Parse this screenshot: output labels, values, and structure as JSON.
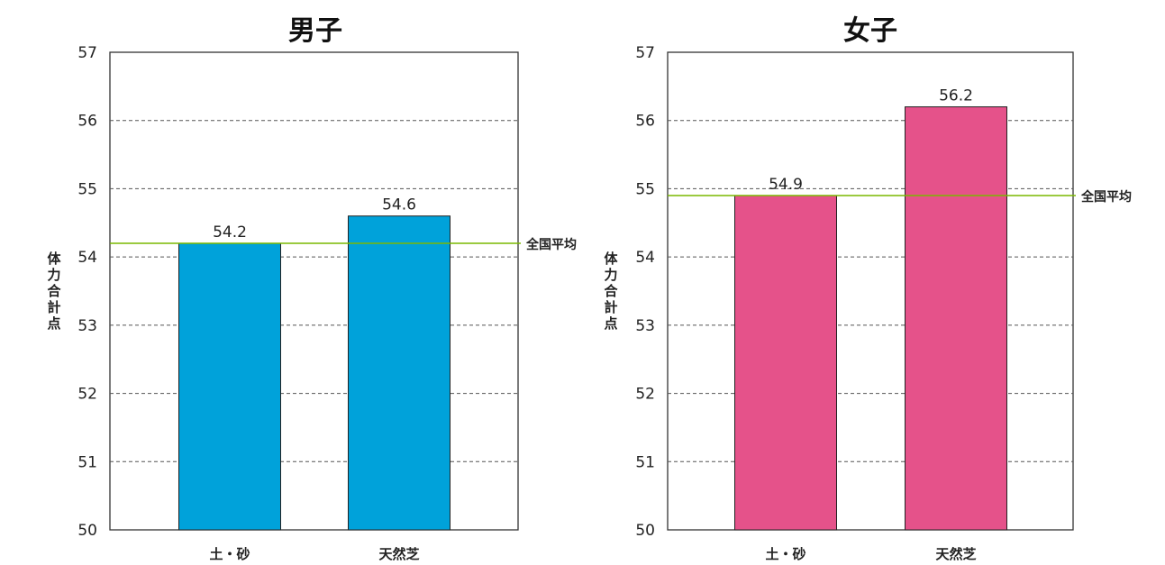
{
  "chart_data": [
    {
      "type": "bar",
      "title": "男子",
      "ylabel": "体力合計点",
      "categories": [
        "土・砂",
        "天然芝"
      ],
      "series": [
        {
          "values": [
            54.2,
            54.6
          ]
        }
      ],
      "value_labels": [
        "54.2",
        "54.6"
      ],
      "ylim": [
        50,
        57
      ],
      "yticks": [
        "50",
        "51",
        "52",
        "53",
        "54",
        "55",
        "56",
        "57"
      ],
      "grid": true,
      "reference_line": {
        "label": "全国平均",
        "value": 54.2,
        "color": "#7ab800"
      },
      "bar_color": "#00a2da"
    },
    {
      "type": "bar",
      "title": "女子",
      "ylabel": "体力合計点",
      "categories": [
        "土・砂",
        "天然芝"
      ],
      "series": [
        {
          "values": [
            54.9,
            56.2
          ]
        }
      ],
      "value_labels": [
        "54.9",
        "56.2"
      ],
      "ylim": [
        50,
        57
      ],
      "yticks": [
        "50",
        "51",
        "52",
        "53",
        "54",
        "55",
        "56",
        "57"
      ],
      "grid": true,
      "reference_line": {
        "label": "全国平均",
        "value": 54.9,
        "color": "#7ab800"
      },
      "bar_color": "#e5528a"
    }
  ]
}
